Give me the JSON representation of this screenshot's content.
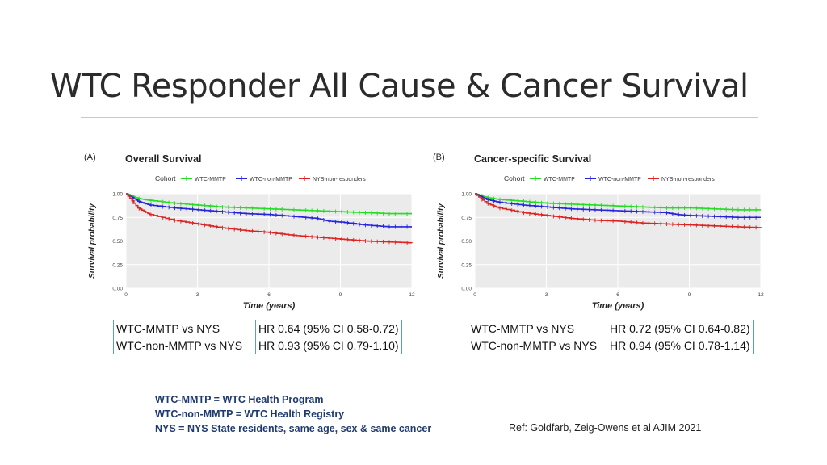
{
  "slide": {
    "title": "WTC Responder All Cause & Cancer Survival",
    "definitions": [
      "WTC-MMTP = WTC Health Program",
      "WTC-non-MMTP = WTC Health Registry",
      "NYS = NYS State residents, same age, sex & same cancer"
    ],
    "reference": "Ref: Goldfarb, Zeig-Owens et al AJIM 2021"
  },
  "colors": {
    "wtc_mmtp": "#22dd22",
    "wtc_non_mmtp": "#2424dd",
    "nys": "#dd2222",
    "panel_bg": "#ebebeb",
    "grid": "#ffffff",
    "hr_border": "#5b9bd5",
    "notes_text": "#1f3a6e"
  },
  "chart_data": [
    {
      "type": "line",
      "panel_label": "(A)",
      "title": "Overall Survival",
      "legend_title": "Cohort",
      "legend_position": "top",
      "xlabel": "Time (years)",
      "ylabel": "Survival probability",
      "xlim": [
        0,
        12
      ],
      "ylim": [
        0,
        1
      ],
      "xticks": [
        0,
        3,
        6,
        9,
        12
      ],
      "yticks": [
        0,
        0.25,
        0.5,
        0.75,
        1.0
      ],
      "ytick_labels": [
        "0.00",
        "0.25",
        "0.50",
        "0.75",
        "1.00"
      ],
      "series": [
        {
          "name": "WTC-MMTP",
          "color": "#22dd22",
          "x": [
            0,
            0.5,
            1,
            2,
            3,
            4,
            5,
            6,
            7,
            8,
            9,
            10,
            11,
            12
          ],
          "y": [
            1.0,
            0.95,
            0.93,
            0.9,
            0.88,
            0.86,
            0.85,
            0.84,
            0.83,
            0.82,
            0.81,
            0.8,
            0.79,
            0.79
          ]
        },
        {
          "name": "WTC-non-MMTP",
          "color": "#2424dd",
          "x": [
            0,
            0.5,
            1,
            2,
            3,
            4,
            5,
            6,
            7,
            7.5,
            8,
            8.5,
            9,
            10,
            11,
            12
          ],
          "y": [
            1.0,
            0.92,
            0.88,
            0.85,
            0.83,
            0.81,
            0.79,
            0.78,
            0.76,
            0.75,
            0.74,
            0.71,
            0.7,
            0.67,
            0.65,
            0.65
          ]
        },
        {
          "name": "NYS-non-responders",
          "color": "#dd2222",
          "x": [
            0,
            0.5,
            1,
            2,
            3,
            4,
            5,
            6,
            7,
            8,
            9,
            10,
            11,
            12
          ],
          "y": [
            1.0,
            0.85,
            0.78,
            0.72,
            0.68,
            0.64,
            0.61,
            0.59,
            0.56,
            0.54,
            0.52,
            0.5,
            0.49,
            0.48
          ]
        }
      ],
      "hazard_ratios": [
        {
          "comparison": "WTC-MMTP vs NYS",
          "value": "HR 0.64 (95% CI 0.58-0.72)"
        },
        {
          "comparison": "WTC-non-MMTP vs NYS",
          "value": "HR 0.93 (95% CI 0.79-1.10)"
        }
      ]
    },
    {
      "type": "line",
      "panel_label": "(B)",
      "title": "Cancer-specific Survival",
      "legend_title": "Cohort",
      "legend_position": "top",
      "xlabel": "Time (years)",
      "ylabel": "Survival probability",
      "xlim": [
        0,
        12
      ],
      "ylim": [
        0,
        1
      ],
      "xticks": [
        0,
        3,
        6,
        9,
        12
      ],
      "yticks": [
        0,
        0.25,
        0.5,
        0.75,
        1.0
      ],
      "ytick_labels": [
        "0.00",
        "0.25",
        "0.50",
        "0.75",
        "1.00"
      ],
      "series": [
        {
          "name": "WTC-MMTP",
          "color": "#22dd22",
          "x": [
            0,
            0.5,
            1,
            2,
            3,
            4,
            5,
            6,
            7,
            8,
            9,
            10,
            11,
            12
          ],
          "y": [
            1.0,
            0.96,
            0.94,
            0.92,
            0.9,
            0.89,
            0.88,
            0.87,
            0.86,
            0.85,
            0.85,
            0.84,
            0.83,
            0.83
          ]
        },
        {
          "name": "WTC-non-MMTP",
          "color": "#2424dd",
          "x": [
            0,
            0.5,
            1,
            2,
            3,
            4,
            5,
            6,
            7,
            8,
            8.5,
            9,
            10,
            11,
            12
          ],
          "y": [
            1.0,
            0.94,
            0.91,
            0.88,
            0.86,
            0.84,
            0.83,
            0.82,
            0.81,
            0.8,
            0.78,
            0.77,
            0.76,
            0.75,
            0.75
          ]
        },
        {
          "name": "NYS-non-responders",
          "color": "#dd2222",
          "x": [
            0,
            0.5,
            1,
            2,
            3,
            4,
            5,
            6,
            7,
            8,
            9,
            10,
            11,
            12
          ],
          "y": [
            1.0,
            0.9,
            0.85,
            0.8,
            0.77,
            0.74,
            0.72,
            0.71,
            0.69,
            0.68,
            0.67,
            0.66,
            0.65,
            0.64
          ]
        }
      ],
      "hazard_ratios": [
        {
          "comparison": "WTC-MMTP vs NYS",
          "value": "HR 0.72 (95% CI 0.64-0.82)"
        },
        {
          "comparison": "WTC-non-MMTP vs NYS",
          "value": "HR 0.94 (95% CI 0.78-1.14)"
        }
      ]
    }
  ]
}
